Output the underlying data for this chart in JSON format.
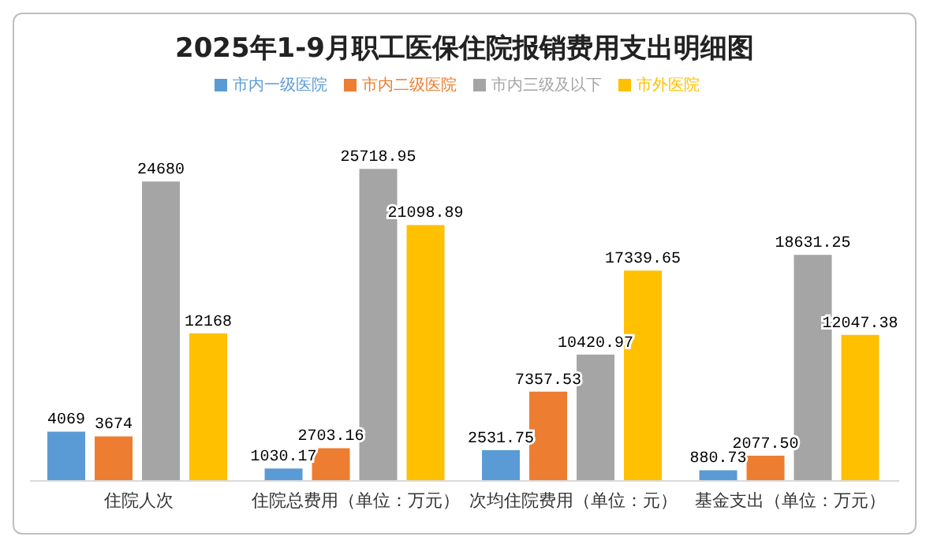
{
  "chart_data": {
    "type": "bar",
    "title": "2025年1-9月职工医保住院报销费用支出明细图",
    "categories": [
      "住院人次",
      "住院总费用（单位：万元）",
      "次均住院费用（单位：元）",
      "基金支出（单位：万元）"
    ],
    "series": [
      {
        "name": "市内一级医院",
        "color": "#5b9bd5",
        "values": [
          4069,
          1030.17,
          2531.75,
          880.73
        ],
        "value_labels": [
          "4069",
          "1030.17",
          "2531.75",
          "880.73"
        ]
      },
      {
        "name": "市内二级医院",
        "color": "#ed7d31",
        "values": [
          3674,
          2703.16,
          7357.53,
          2077.5
        ],
        "value_labels": [
          "3674",
          "2703.16",
          "7357.53",
          "2077.50"
        ]
      },
      {
        "name": "市内三级及以下",
        "color": "#a5a5a5",
        "values": [
          24680,
          25718.95,
          10420.97,
          18631.25
        ],
        "value_labels": [
          "24680",
          "25718.95",
          "10420.97",
          "18631.25"
        ]
      },
      {
        "name": "市外医院",
        "color": "#ffc000",
        "values": [
          12168,
          21098.89,
          17339.65,
          12047.38
        ],
        "value_labels": [
          "12168",
          "21098.89",
          "17339.65",
          "12047.38"
        ]
      }
    ],
    "tick_labels": "x",
    "grid": false,
    "legend": "top"
  }
}
